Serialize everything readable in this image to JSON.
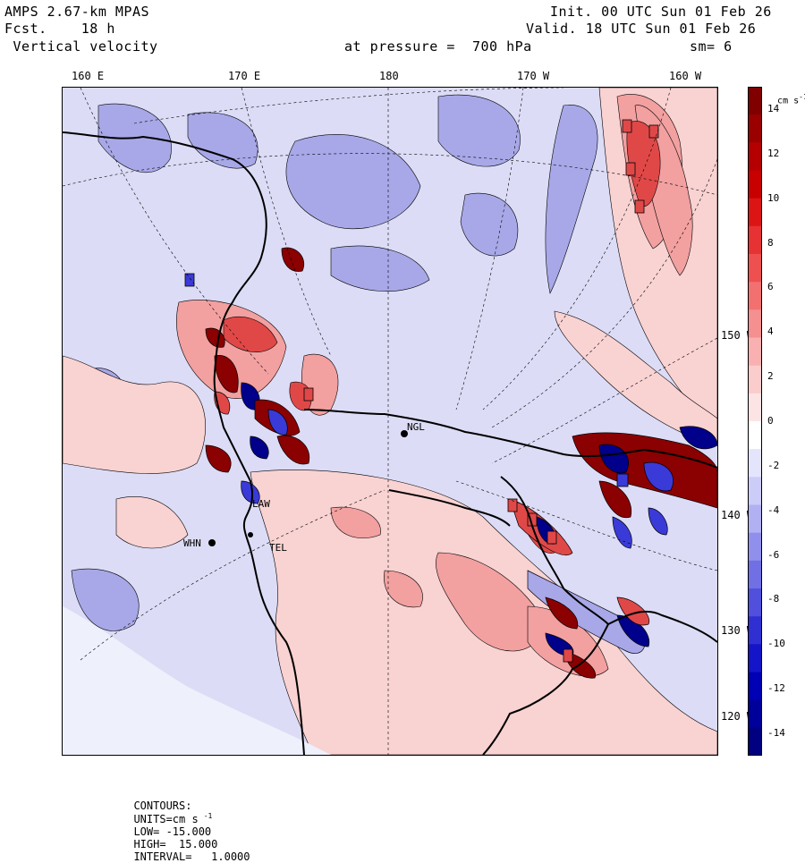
{
  "header": {
    "model": "AMPS 2.67-km MPAS",
    "fcst": "Fcst.    18 h",
    "field": " Vertical velocity",
    "init": "Init. 00 UTC Sun 01 Feb 26",
    "valid": "Valid. 18 UTC Sun 01 Feb 26",
    "pressure": "at pressure =  700 hPa",
    "smoothing": "sm= 6"
  },
  "lon_labels": [
    "160 E",
    "170 E",
    "180",
    "170 W",
    "160 W"
  ],
  "lat_labels": [
    "150 W",
    "140 W",
    "130 W",
    "120 W"
  ],
  "stations": [
    {
      "name": "NGL"
    },
    {
      "name": "LAW"
    },
    {
      "name": "WHN"
    },
    {
      "name": "TEL"
    }
  ],
  "colorbar": {
    "units": "cm s",
    "units_exp": "-1",
    "ticks": [
      "14",
      "12",
      "10",
      "8",
      "6",
      "4",
      "2",
      "0",
      "-2",
      "-4",
      "-6",
      "-8",
      "-10",
      "-12",
      "-14"
    ],
    "colors": [
      "#800000",
      "#9b0000",
      "#b40000",
      "#c80000",
      "#dc1414",
      "#e63232",
      "#ee5050",
      "#f27070",
      "#f59090",
      "#f8b0b0",
      "#fbcccc",
      "#fde4e4",
      "#ffffff",
      "#e4e4fc",
      "#ccccf8",
      "#b0b0f2",
      "#9090ec",
      "#7070e4",
      "#5050dc",
      "#3030d2",
      "#1414c8",
      "#0000b4",
      "#00009b",
      "#000080"
    ]
  },
  "footer": {
    "contours": "CONTOURS:",
    "units": "UNITS=cm s",
    "units_exp": "-1",
    "low": "LOW= -15.000",
    "high": "HIGH=  15.000",
    "interval": "INTERVAL=   1.0000"
  },
  "map": {
    "field_name": "Vertical velocity at 700 hPa",
    "colors": {
      "strong_red": "#e04848",
      "mid_red": "#f2a0a0",
      "light_red": "#f9d2d2",
      "light_blue": "#dcdcf6",
      "mid_blue": "#a8a8e8",
      "strong_blue": "#3a3ad8",
      "dark_red": "#8b0000",
      "dark_blue": "#00008b",
      "land_white": "#ffffff"
    }
  }
}
